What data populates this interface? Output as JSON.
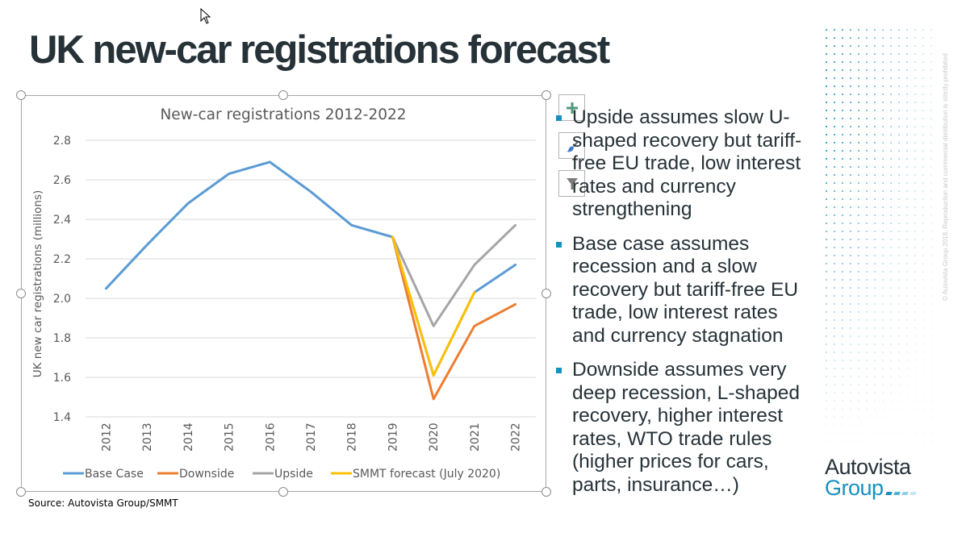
{
  "slide": {
    "title": "UK new-car registrations forecast",
    "source": "Source: Autovista Group/SMMT",
    "watermark": "© Autovista Group 2018. Reproduction and commercial distribution is strictly prohibited",
    "logo": {
      "line1": "Autovista",
      "line2": "Group",
      "colors": [
        "#1591c0",
        "#4fb3d9",
        "#8fd0e8",
        "#c5e6f2"
      ]
    },
    "accent_color": "#1591c0"
  },
  "chart_tools": [
    {
      "name": "chart-elements-button",
      "icon": "plus-icon"
    },
    {
      "name": "chart-styles-button",
      "icon": "paintbrush-icon"
    },
    {
      "name": "chart-filters-button",
      "icon": "filter-icon"
    }
  ],
  "bullets": [
    "Upside assumes slow U-shaped recovery but tariff-free EU trade, low interest rates and currency strengthening",
    "Base case assumes recession and a slow recovery but tariff-free EU trade, low interest rates and currency stagnation",
    "Downside assumes very deep recession, L-shaped recovery, higher interest rates, WTO trade rules (higher prices for cars, parts, insurance…)"
  ],
  "bullet_lines": [
    [
      "Upside assumes slow U-",
      "shaped recovery but tariff-",
      "free EU trade, low interest",
      "rates and currency",
      "strengthening"
    ],
    [
      "Base case assumes",
      "recession and a slow",
      "recovery but tariff-free EU",
      "trade, low interest rates",
      "and currency stagnation"
    ],
    [
      "Downside assumes very",
      "deep recession, L-shaped",
      "recovery, higher interest",
      "rates, WTO trade rules",
      "(higher prices for cars,",
      "parts, insurance…)"
    ]
  ],
  "chart_data": {
    "type": "line",
    "title": "New-car registrations 2012-2022",
    "xlabel": "",
    "ylabel": "UK new car registrations (millions)",
    "ylim": [
      1.4,
      2.8
    ],
    "yticks": [
      "1.4",
      "1.6",
      "1.8",
      "2.0",
      "2.2",
      "2.4",
      "2.6",
      "2.8"
    ],
    "categories": [
      "2012",
      "2013",
      "2014",
      "2015",
      "2016",
      "2017",
      "2018",
      "2019",
      "2020",
      "2021",
      "2022"
    ],
    "grid": true,
    "legend_position": "bottom",
    "series": [
      {
        "name": "Base Case",
        "color": "#5b9bd5",
        "values": [
          2.05,
          2.27,
          2.48,
          2.63,
          2.69,
          2.54,
          2.37,
          2.31,
          1.61,
          2.03,
          2.17
        ]
      },
      {
        "name": "Downside",
        "color": "#ed7d31",
        "values": [
          null,
          null,
          null,
          null,
          null,
          null,
          null,
          2.31,
          1.49,
          1.86,
          1.97
        ]
      },
      {
        "name": "Upside",
        "color": "#a5a5a5",
        "values": [
          null,
          null,
          null,
          null,
          null,
          null,
          null,
          2.31,
          1.86,
          2.17,
          2.37
        ]
      },
      {
        "name": "SMMT forecast (July 2020)",
        "color": "#ffc000",
        "values": [
          null,
          null,
          null,
          null,
          null,
          null,
          null,
          2.31,
          1.61,
          2.03,
          null
        ]
      }
    ]
  }
}
